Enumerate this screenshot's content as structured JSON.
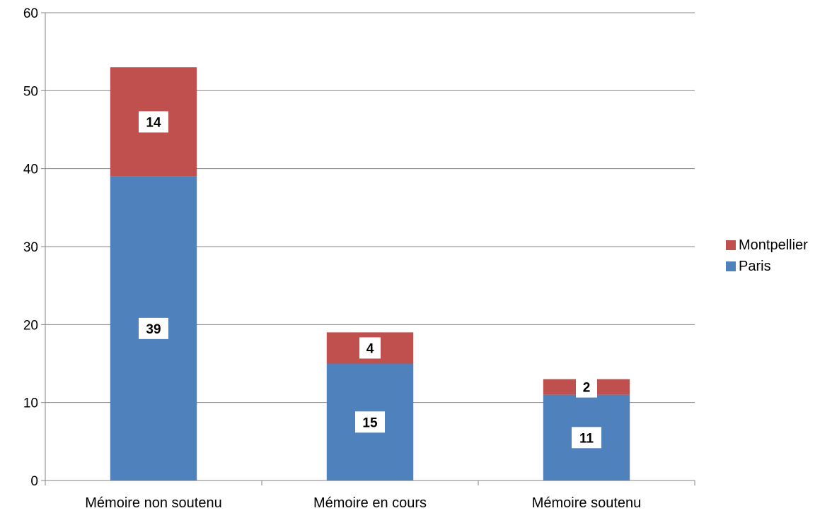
{
  "chart_data": {
    "type": "bar",
    "stacked": true,
    "categories": [
      "Mémoire non soutenu",
      "Mémoire en cours",
      "Mémoire soutenu"
    ],
    "series": [
      {
        "name": "Paris",
        "values": [
          39,
          15,
          11
        ],
        "color": "#4F81BD"
      },
      {
        "name": "Montpellier",
        "values": [
          14,
          4,
          2
        ],
        "color": "#C0504D"
      }
    ],
    "ylim": [
      0,
      60
    ],
    "yticks": [
      0,
      10,
      20,
      30,
      40,
      50,
      60
    ],
    "grid": true,
    "legend_position": "right",
    "data_labels": true
  },
  "legend": {
    "items": [
      {
        "label": "Montpellier",
        "color": "#C0504D"
      },
      {
        "label": "Paris",
        "color": "#4F81BD"
      }
    ]
  }
}
